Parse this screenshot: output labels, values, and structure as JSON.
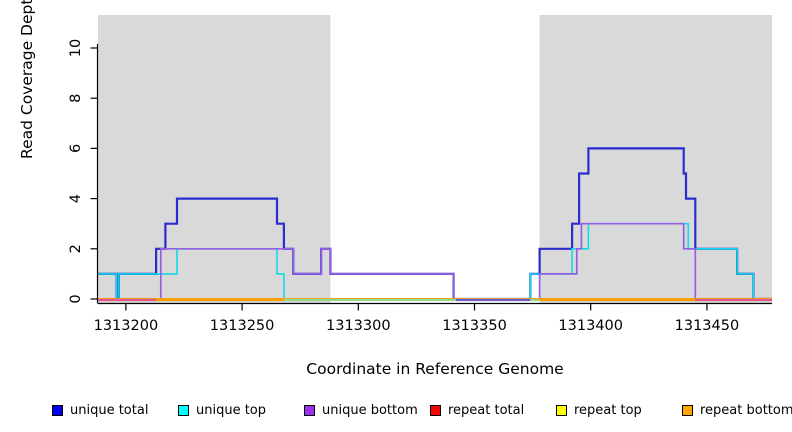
{
  "chart_data": {
    "type": "line",
    "subtype": "step-coverage",
    "title": "",
    "xlabel": "Coordinate in Reference Genome",
    "ylabel": "Read Coverage Depth",
    "xlim": [
      1313188,
      1313478
    ],
    "ylim": [
      0,
      11.3
    ],
    "grid": false,
    "x_ticks": [
      1313200,
      1313250,
      1313300,
      1313350,
      1313400,
      1313450
    ],
    "y_ticks": [
      0,
      2,
      4,
      6,
      8,
      10
    ],
    "shaded_regions": [
      {
        "x0": 1313188,
        "x1": 1313288,
        "color": "#d9d9d9"
      },
      {
        "x0": 1313378,
        "x1": 1313478,
        "color": "#d9d9d9"
      }
    ],
    "series": [
      {
        "name": "unique total",
        "color": "#2b2bd0",
        "width": 2.2,
        "steps": [
          [
            1313188,
            1
          ],
          [
            1313196,
            0
          ],
          [
            1313197,
            1
          ],
          [
            1313213,
            2
          ],
          [
            1313217,
            3
          ],
          [
            1313222,
            4
          ],
          [
            1313265,
            3
          ],
          [
            1313268,
            2
          ],
          [
            1313272,
            1
          ],
          [
            1313284,
            2
          ],
          [
            1313288,
            1
          ],
          [
            1313341,
            0
          ],
          [
            1313374,
            1
          ],
          [
            1313378,
            2
          ],
          [
            1313392,
            3
          ],
          [
            1313395,
            5
          ],
          [
            1313399,
            6
          ],
          [
            1313440,
            5
          ],
          [
            1313441,
            4
          ],
          [
            1313445,
            2
          ],
          [
            1313463,
            1
          ],
          [
            1313470,
            0
          ]
        ]
      },
      {
        "name": "unique top",
        "color": "#10dce6",
        "width": 1.6,
        "steps": [
          [
            1313188,
            1
          ],
          [
            1313196,
            0
          ],
          [
            1313197,
            1
          ],
          [
            1313222,
            2
          ],
          [
            1313265,
            1
          ],
          [
            1313268,
            0
          ],
          [
            1313374,
            1
          ],
          [
            1313392,
            2
          ],
          [
            1313399,
            3
          ],
          [
            1313442,
            2
          ],
          [
            1313463,
            1
          ],
          [
            1313470,
            0
          ]
        ]
      },
      {
        "name": "unique bottom",
        "color": "#9460e3",
        "width": 1.7,
        "steps": [
          [
            1313188,
            0
          ],
          [
            1313215,
            2
          ],
          [
            1313272,
            1
          ],
          [
            1313284,
            2
          ],
          [
            1313288,
            1
          ],
          [
            1313341,
            0
          ],
          [
            1313378,
            1
          ],
          [
            1313394,
            2
          ],
          [
            1313396,
            3
          ],
          [
            1313440,
            2
          ],
          [
            1313445,
            0
          ]
        ]
      },
      {
        "name": "repeat total",
        "color": "#ee2222",
        "width": 1.6,
        "steps": [
          [
            1313188,
            0
          ]
        ]
      },
      {
        "name": "repeat top",
        "color": "#f2f218",
        "width": 1.6,
        "steps": [
          [
            1313188,
            0
          ]
        ]
      },
      {
        "name": "repeat bottom",
        "color": "#ff9d00",
        "width": 1.8,
        "steps": [
          [
            1313188,
            0
          ]
        ]
      }
    ],
    "baseline_segments": [
      {
        "x0": 1313188,
        "x1": 1313213,
        "color": "#e05a8a"
      },
      {
        "x0": 1313213,
        "x1": 1313268,
        "color": "#ff9d00"
      },
      {
        "x0": 1313268,
        "x1": 1313342,
        "color": "#8fd98f"
      },
      {
        "x0": 1313342,
        "x1": 1313374,
        "color": "#6a5cd0"
      },
      {
        "x0": 1313374,
        "x1": 1313378,
        "color": "#8fd98f"
      },
      {
        "x0": 1313378,
        "x1": 1313445,
        "color": "#ff9d00"
      },
      {
        "x0": 1313445,
        "x1": 1313478,
        "color": "#e05a8a"
      }
    ],
    "legend": [
      {
        "label": "unique total",
        "color": "#0000ee"
      },
      {
        "label": "unique top",
        "color": "#00ffff"
      },
      {
        "label": "unique bottom",
        "color": "#9d30ea"
      },
      {
        "label": "repeat total",
        "color": "#ff0000"
      },
      {
        "label": "repeat top",
        "color": "#ffff00"
      },
      {
        "label": "repeat bottom",
        "color": "#ffa500"
      }
    ],
    "legend_position": "bottom"
  }
}
